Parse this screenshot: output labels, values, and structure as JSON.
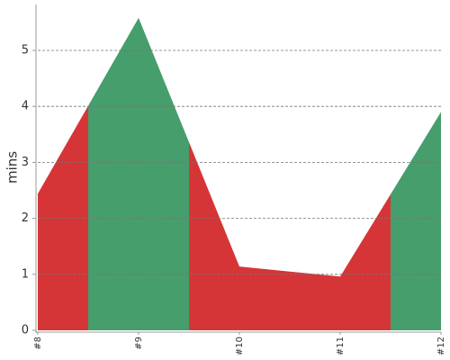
{
  "chart_data": {
    "type": "area",
    "y_label": "mins",
    "categories": [
      "#8",
      "#9",
      "#10",
      "#11",
      "#12"
    ],
    "values": [
      2.44,
      5.58,
      1.14,
      0.96,
      3.9
    ],
    "colors": [
      "#d63537",
      "#459e6b",
      "#d63537",
      "#d63537",
      "#459e6b"
    ],
    "ylim": [
      0,
      5.82
    ],
    "yticks": [
      0,
      1,
      2,
      3,
      4,
      5
    ],
    "grid": true
  }
}
